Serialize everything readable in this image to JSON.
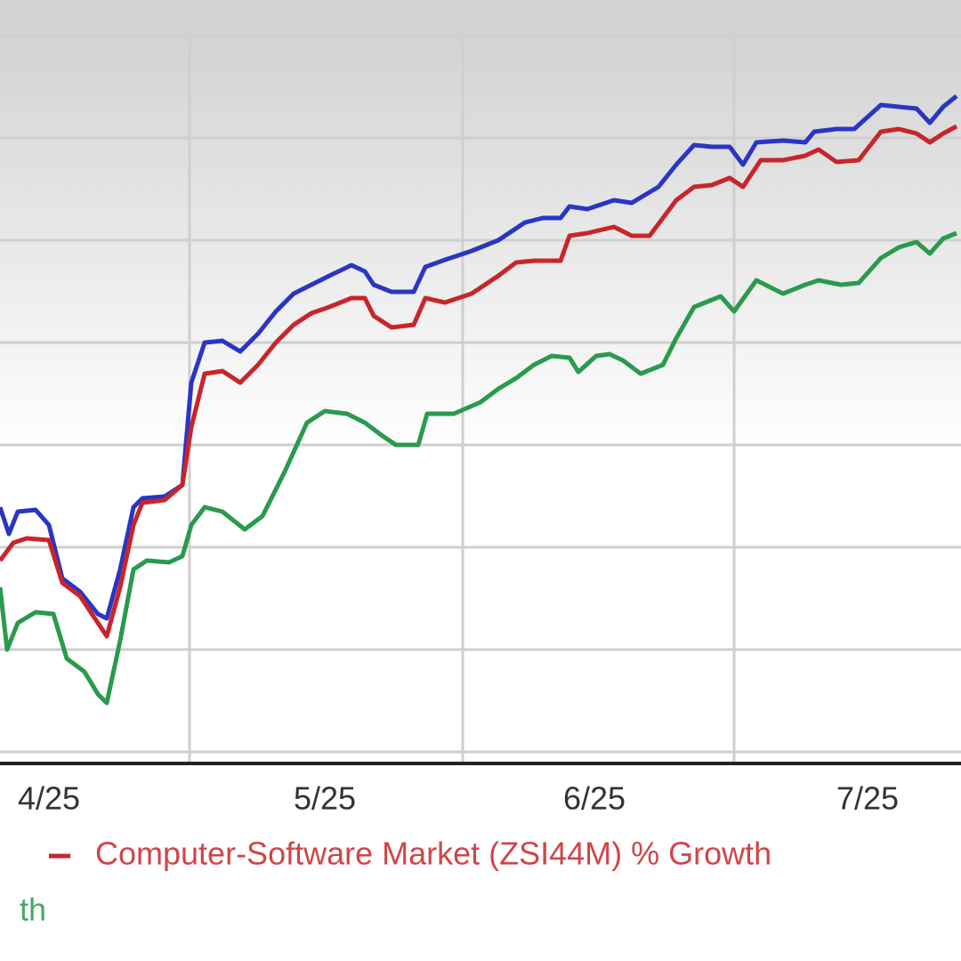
{
  "chart_data": {
    "type": "line",
    "xlim": [
      0,
      108
    ],
    "ylim": [
      0,
      805
    ],
    "xticks": [
      {
        "value": 5.5,
        "label": "4/25"
      },
      {
        "value": 36.5,
        "label": "5/25"
      },
      {
        "value": 66.8,
        "label": "6/25"
      },
      {
        "value": 97.5,
        "label": "7/25"
      }
    ],
    "yticks": [
      0,
      115,
      230,
      345,
      460,
      575,
      690,
      805
    ],
    "grid": true,
    "series": [
      {
        "color": "#2b35c4",
        "x": [
          0,
          1,
          2,
          4,
          5.5,
          7,
          9,
          11,
          12,
          13.5,
          15,
          16,
          18.5,
          20.5,
          21.5,
          23,
          25,
          27,
          29,
          31,
          33,
          35,
          37,
          39.5,
          41,
          42,
          44,
          46.5,
          47.8,
          50,
          53,
          56,
          59,
          61,
          63,
          64,
          66,
          69,
          71,
          74,
          76,
          78,
          80,
          82,
          83.5,
          85,
          88,
          90.5,
          91.5,
          94,
          96,
          99,
          101,
          103,
          104.5,
          106,
          107.5
        ],
        "values": [
          275,
          245,
          270,
          272,
          255,
          195,
          180,
          155,
          150,
          205,
          275,
          285,
          287,
          300,
          415,
          460,
          462,
          450,
          470,
          495,
          515,
          525,
          535,
          547,
          540,
          525,
          517,
          517,
          545,
          553,
          563,
          575,
          595,
          600,
          600,
          613,
          610,
          620,
          617,
          635,
          660,
          682,
          680,
          680,
          660,
          685,
          687,
          685,
          697,
          700,
          700,
          727,
          725,
          723,
          707,
          725,
          737
        ]
      },
      {
        "name": "Computer-Software Market (ZSI44M) % Growth",
        "color": "#c8252a",
        "x": [
          0,
          1.5,
          3,
          5.5,
          7,
          9,
          11,
          12,
          13.5,
          15,
          16,
          18.5,
          20.5,
          21.5,
          23,
          25,
          27,
          29,
          31,
          33,
          35,
          37,
          39.5,
          41,
          42,
          44,
          46.5,
          47.8,
          50,
          53,
          56,
          58,
          60,
          63,
          64,
          66,
          69,
          71,
          73,
          76,
          78,
          80,
          82,
          83.5,
          85.5,
          88,
          90.5,
          92,
          94,
          96.5,
          99,
          101,
          103,
          104.5,
          106,
          107.5
        ],
        "values": [
          215,
          235,
          240,
          238,
          190,
          175,
          145,
          130,
          185,
          255,
          280,
          283,
          300,
          365,
          425,
          428,
          415,
          435,
          460,
          480,
          493,
          500,
          510,
          510,
          490,
          477,
          480,
          510,
          505,
          515,
          535,
          550,
          552,
          552,
          580,
          583,
          590,
          580,
          580,
          620,
          635,
          637,
          645,
          635,
          665,
          665,
          670,
          677,
          663,
          665,
          697,
          700,
          695,
          685,
          695,
          703
        ]
      },
      {
        "name": "th",
        "color": "#2a9a4c",
        "x": [
          0,
          0.8,
          2,
          4,
          6,
          7.5,
          9.5,
          11,
          12,
          13.5,
          15,
          16.5,
          19,
          20.5,
          21.5,
          23,
          25,
          27.5,
          29.5,
          32,
          34.5,
          36.5,
          39,
          41,
          43,
          44.5,
          47,
          48,
          51,
          54,
          56,
          58,
          60,
          62,
          64,
          65,
          67,
          68.5,
          70,
          72,
          74.5,
          76,
          78,
          81,
          82.5,
          85,
          88,
          90.5,
          92,
          94.5,
          96.5,
          99,
          101,
          103,
          104.5,
          106,
          107.5
        ],
        "values": [
          185,
          115,
          145,
          157,
          155,
          105,
          90,
          65,
          55,
          125,
          205,
          215,
          213,
          220,
          255,
          275,
          270,
          250,
          265,
          315,
          370,
          383,
          380,
          370,
          355,
          345,
          345,
          380,
          380,
          393,
          408,
          420,
          435,
          445,
          443,
          427,
          445,
          447,
          440,
          425,
          435,
          465,
          500,
          512,
          495,
          530,
          515,
          525,
          530,
          525,
          527,
          555,
          567,
          573,
          560,
          577,
          583
        ]
      }
    ]
  }
}
